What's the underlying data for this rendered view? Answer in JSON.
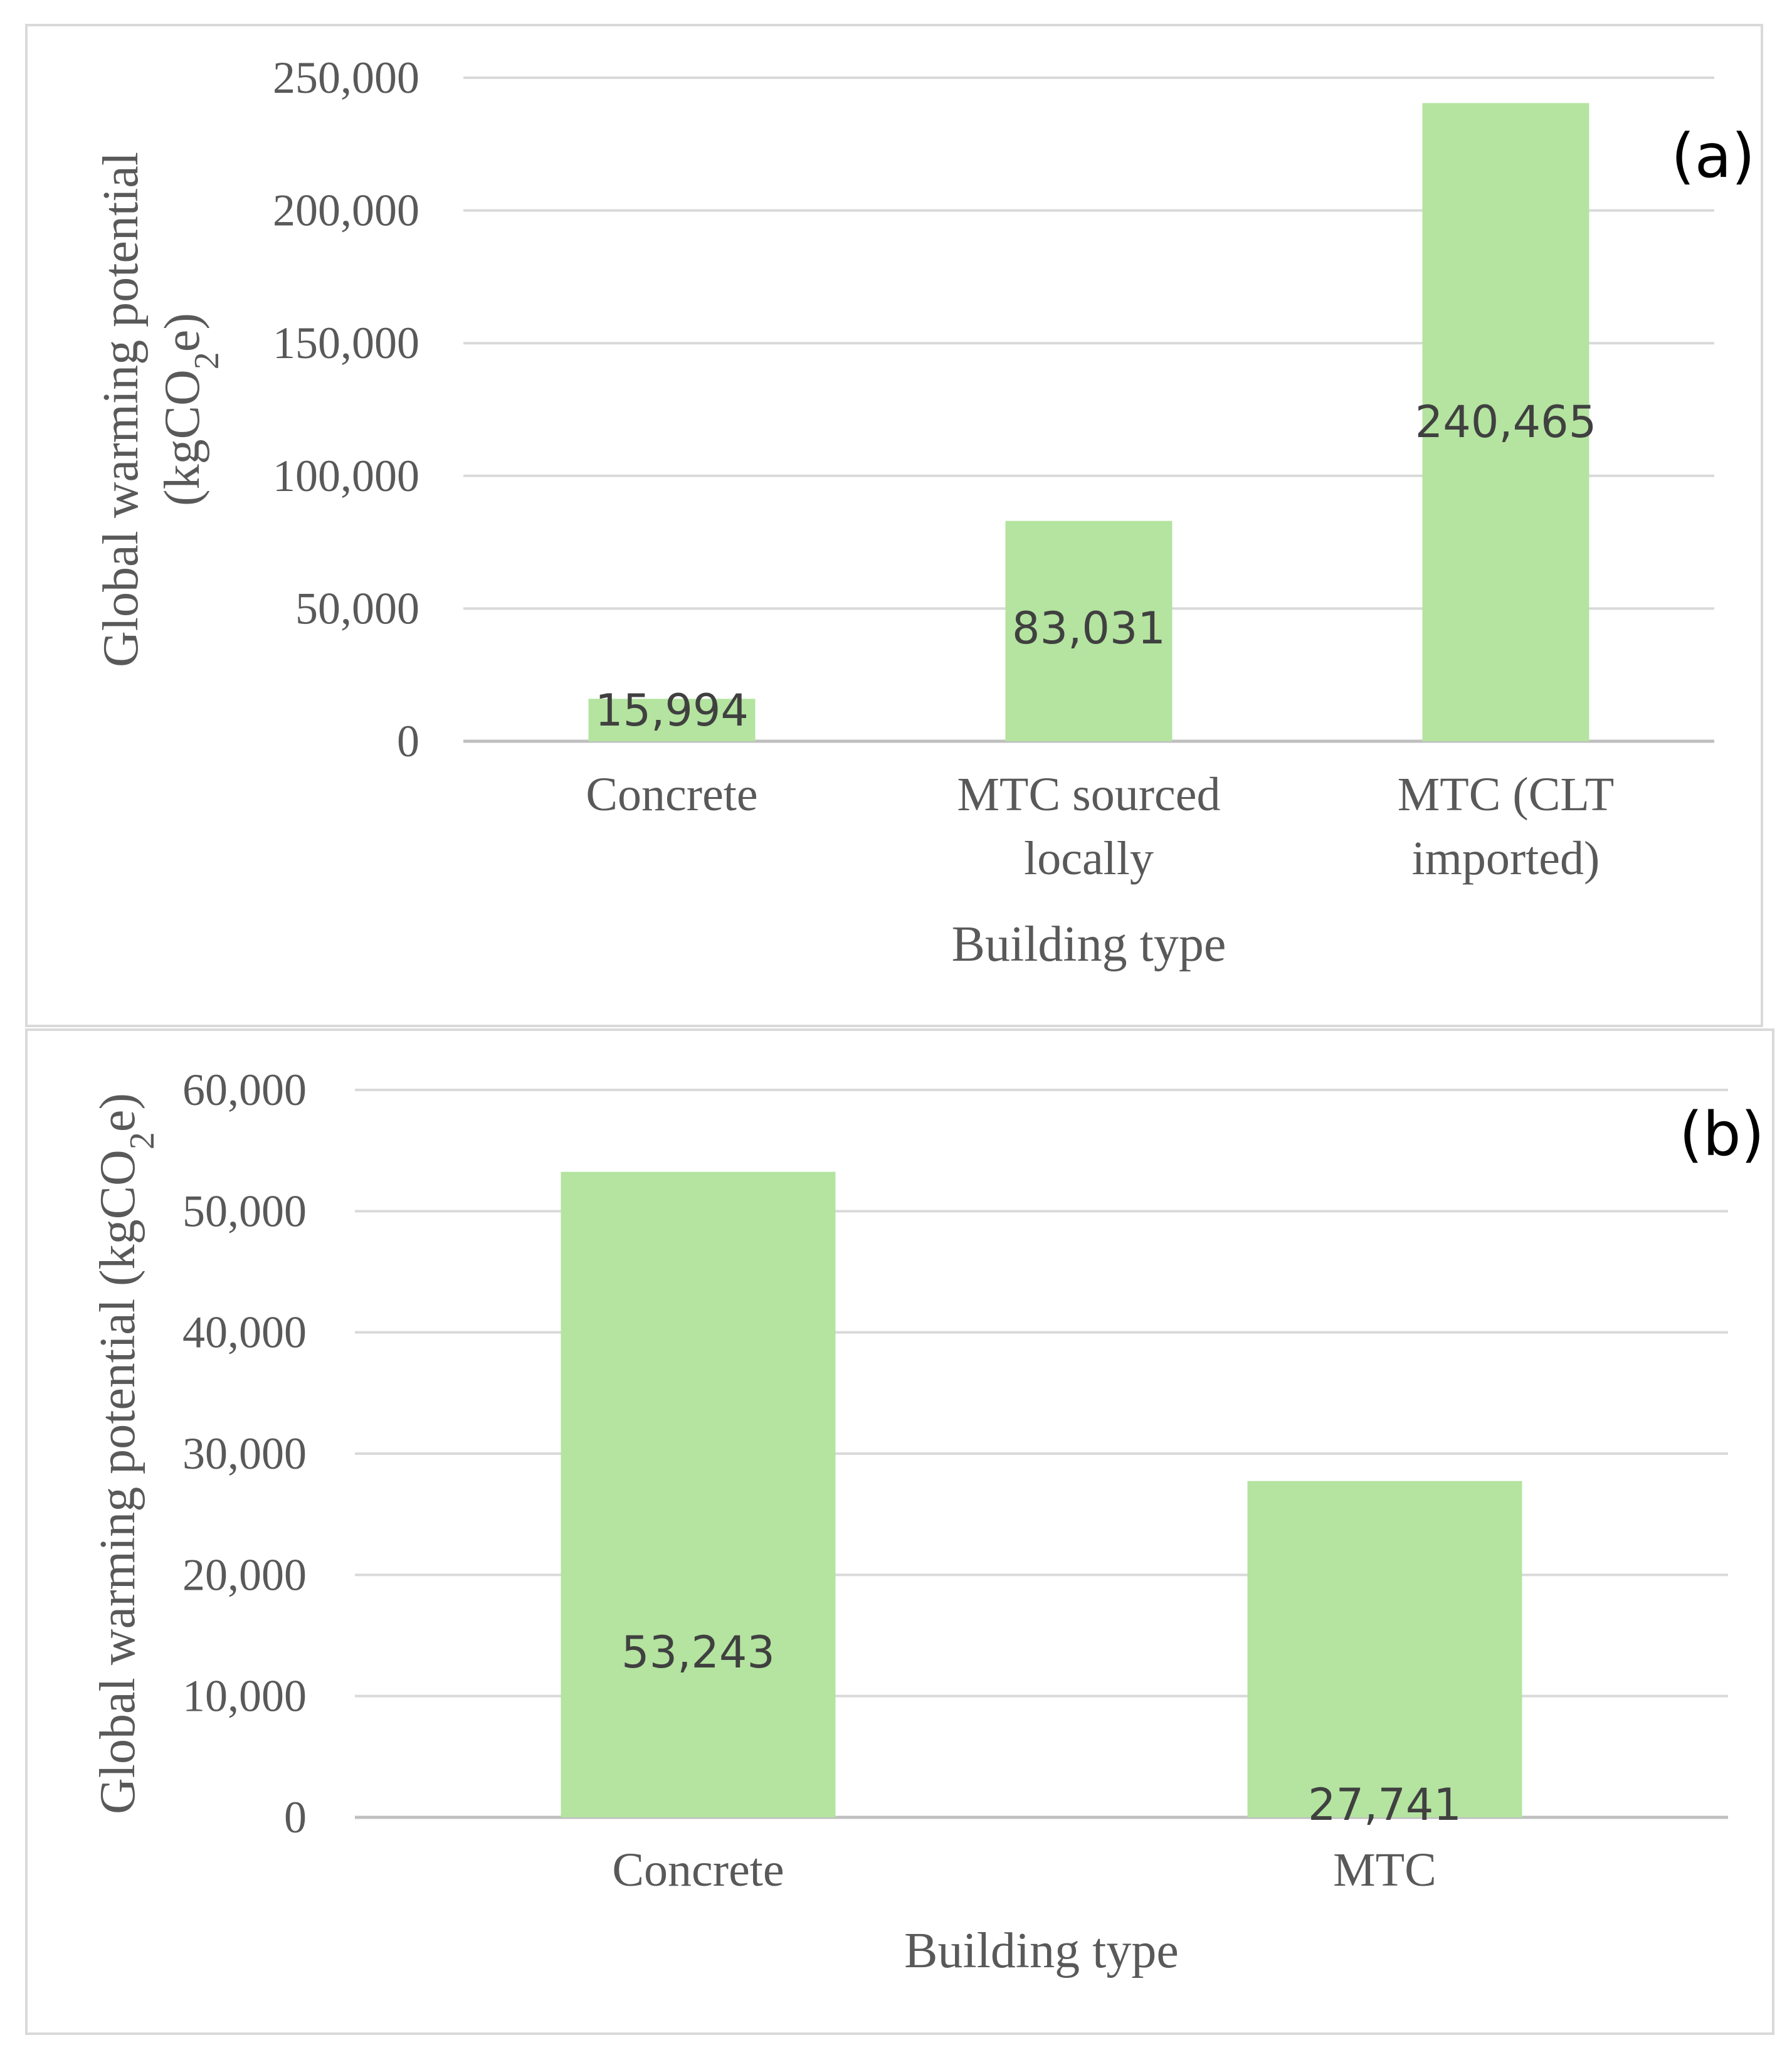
{
  "chart_data": [
    {
      "type": "bar",
      "panel_label": "(a)",
      "categories": [
        [
          "Concrete"
        ],
        [
          "MTC sourced",
          "locally"
        ],
        [
          "MTC (CLT",
          "imported)"
        ]
      ],
      "values": [
        15994,
        83031,
        240465
      ],
      "value_labels": [
        "15,994",
        "83,031",
        "240,465"
      ],
      "xlabel": "Building type",
      "ylabel_lines": [
        "Global warming potential",
        "(kgCO2e)"
      ],
      "ylim": [
        0,
        250000
      ],
      "yticks": [
        0,
        50000,
        100000,
        150000,
        200000,
        250000
      ],
      "ytick_labels": [
        "0",
        "50,000",
        "100,000",
        "150,000",
        "200,000",
        "250,000"
      ],
      "grid": true,
      "bar_color": "#b4e4a0"
    },
    {
      "type": "bar",
      "panel_label": "(b)",
      "categories": [
        [
          "Concrete"
        ],
        [
          "MTC"
        ]
      ],
      "values": [
        53243,
        27741
      ],
      "value_labels": [
        "53,243",
        "27,741"
      ],
      "xlabel": "Building type",
      "ylabel_lines": [
        "Global warming potential (kgCO2e)"
      ],
      "ylim": [
        0,
        60000
      ],
      "yticks": [
        0,
        10000,
        20000,
        30000,
        40000,
        50000,
        60000
      ],
      "ytick_labels": [
        "0",
        "10,000",
        "20,000",
        "30,000",
        "40,000",
        "50,000",
        "60,000"
      ],
      "grid": true,
      "bar_color": "#b4e4a0"
    }
  ]
}
